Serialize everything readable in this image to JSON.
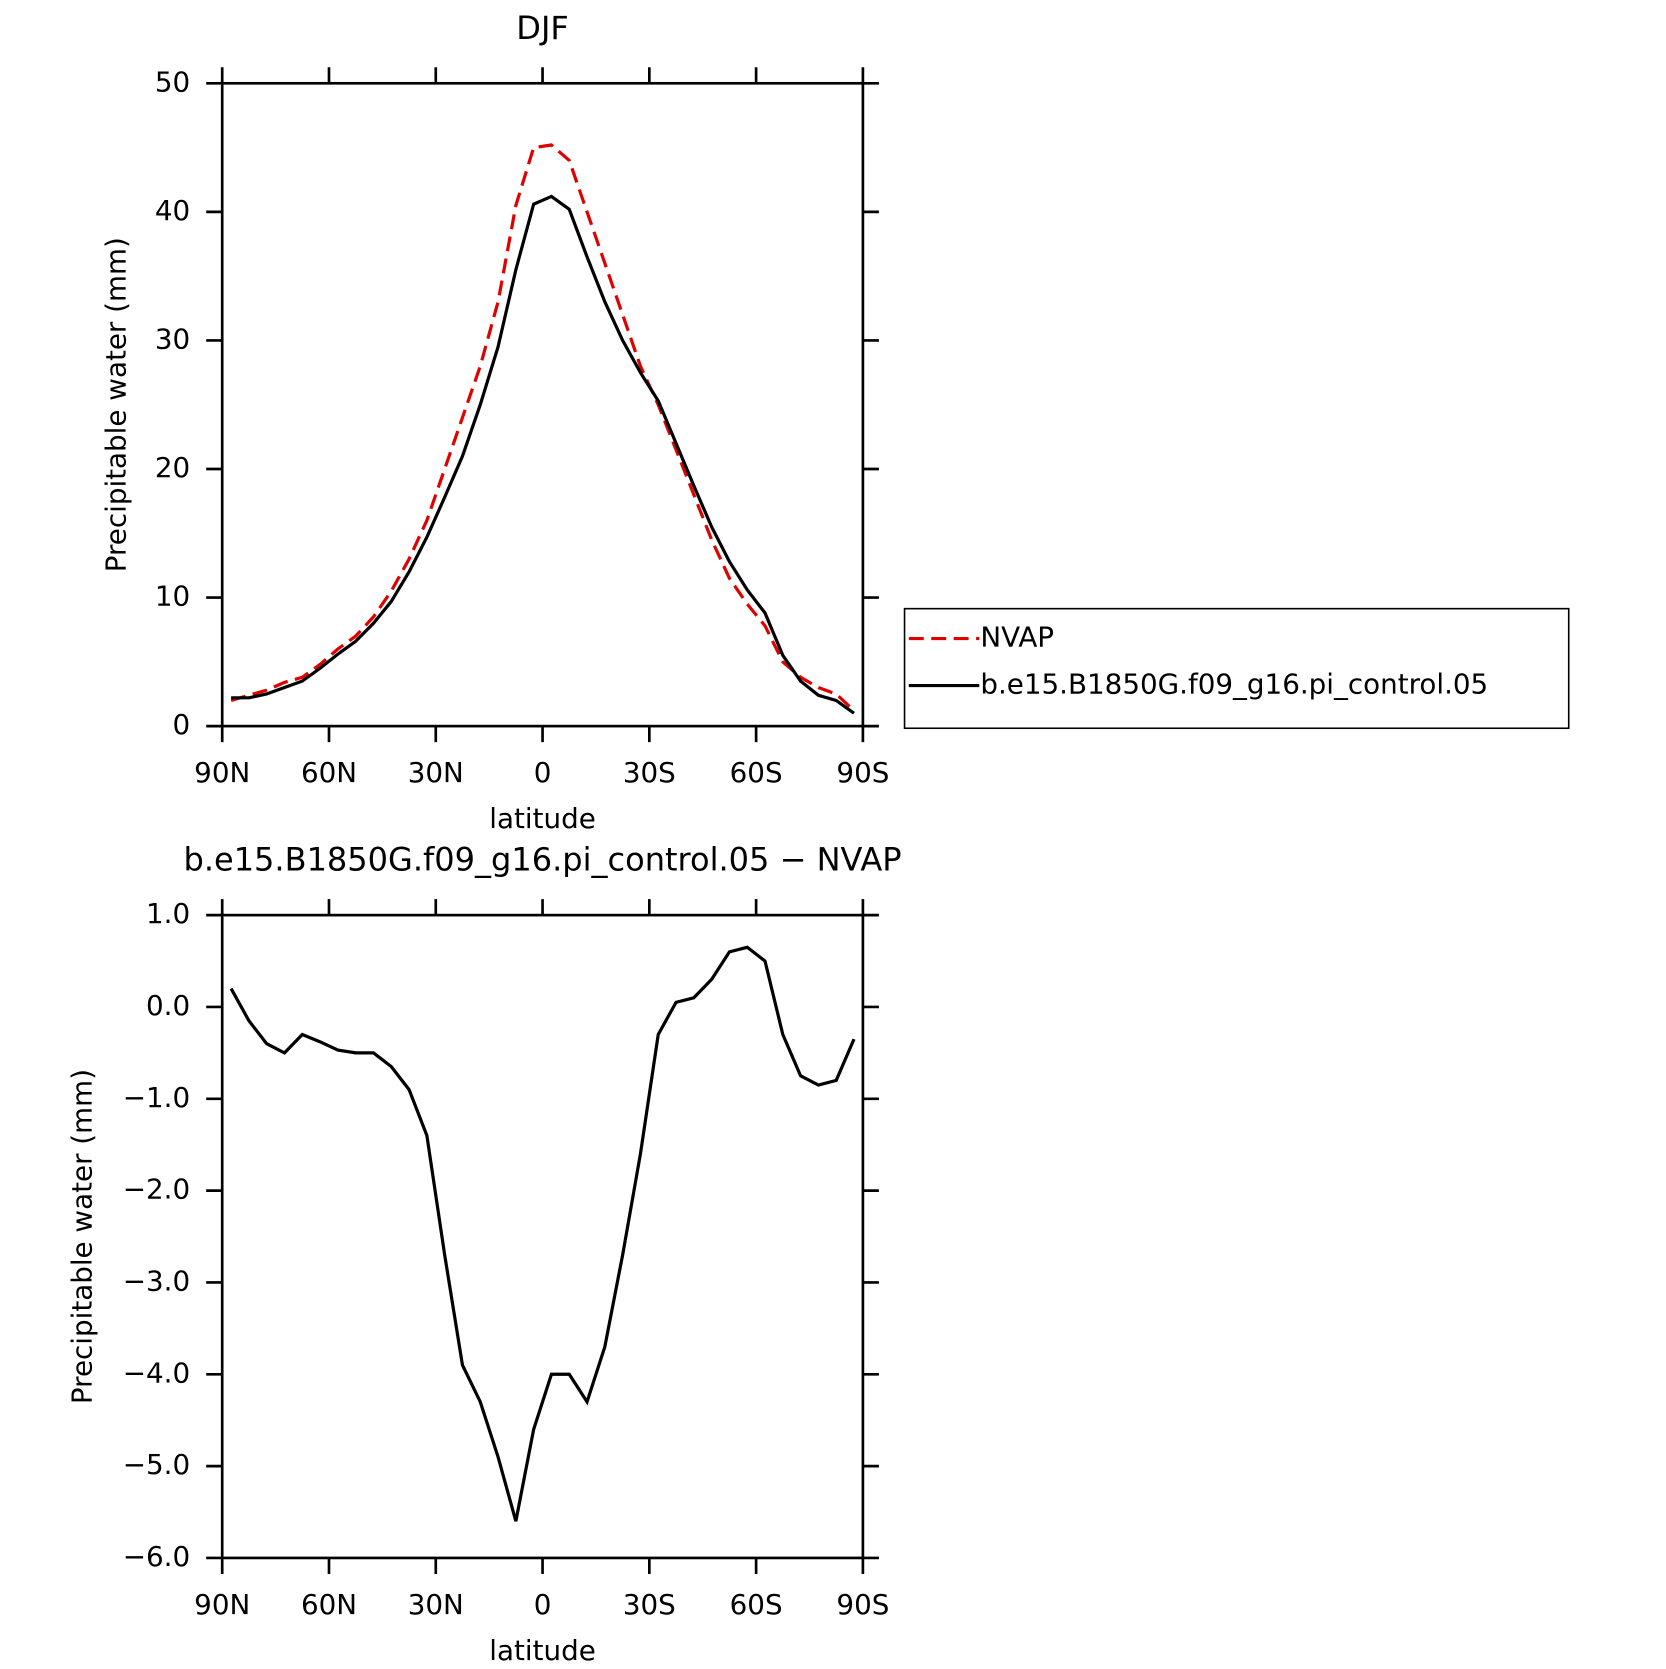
{
  "chart_data": [
    {
      "type": "line",
      "title": "DJF",
      "xlabel": "latitude",
      "ylabel": "Precipitable water (mm)",
      "x": [
        87.5,
        82.5,
        77.5,
        72.5,
        67.5,
        62.5,
        57.5,
        52.5,
        47.5,
        42.5,
        37.5,
        32.5,
        27.5,
        22.5,
        17.5,
        12.5,
        7.5,
        2.5,
        -2.5,
        -7.5,
        -12.5,
        -17.5,
        -22.5,
        -27.5,
        -32.5,
        -37.5,
        -42.5,
        -47.5,
        -52.5,
        -57.5,
        -62.5,
        -67.5,
        -72.5,
        -77.5,
        -82.5,
        -87.5
      ],
      "xlim": [
        90,
        -90
      ],
      "xticks": [
        {
          "value": 90,
          "label": "90N"
        },
        {
          "value": 60,
          "label": "60N"
        },
        {
          "value": 30,
          "label": "30N"
        },
        0,
        {
          "value": -30,
          "label": "30S"
        },
        {
          "value": -60,
          "label": "60S"
        },
        {
          "value": -90,
          "label": "90S"
        }
      ],
      "ylim": [
        0,
        50
      ],
      "yticks": [
        0,
        10,
        20,
        30,
        40,
        50
      ],
      "grid": false,
      "legend": "right",
      "series": [
        {
          "name": "NVAP",
          "color": "#e00000",
          "linestyle": "dashed",
          "values": [
            2.0,
            2.4,
            2.8,
            3.4,
            3.8,
            4.8,
            6.0,
            7.0,
            8.5,
            10.5,
            13.0,
            16.0,
            20.0,
            24.0,
            28.0,
            33.0,
            40.5,
            45.0,
            45.2,
            44.0,
            40.0,
            36.0,
            32.0,
            28.0,
            25.0,
            21.5,
            18.0,
            14.5,
            11.5,
            9.5,
            7.8,
            5.0,
            3.8,
            3.0,
            2.5,
            1.2
          ]
        },
        {
          "name": "b.e15.B1850G.f09_g16.pi_control.05",
          "color": "#000000",
          "linestyle": "solid",
          "values": [
            2.2,
            2.2,
            2.5,
            3.0,
            3.5,
            4.5,
            5.6,
            6.6,
            8.0,
            9.7,
            12.0,
            14.7,
            17.8,
            21.0,
            25.0,
            29.5,
            35.5,
            40.6,
            41.2,
            40.2,
            36.5,
            33.0,
            30.0,
            27.5,
            25.3,
            22.0,
            18.7,
            15.5,
            12.8,
            10.6,
            8.8,
            5.5,
            3.5,
            2.4,
            2.0,
            1.0
          ]
        }
      ]
    },
    {
      "type": "line",
      "title": "b.e15.B1850G.f09_g16.pi_control.05 − NVAP",
      "xlabel": "latitude",
      "ylabel": "Precipitable water (mm)",
      "x": [
        87.5,
        82.5,
        77.5,
        72.5,
        67.5,
        62.5,
        57.5,
        52.5,
        47.5,
        42.5,
        37.5,
        32.5,
        27.5,
        22.5,
        17.5,
        12.5,
        7.5,
        2.5,
        -2.5,
        -7.5,
        -12.5,
        -17.5,
        -22.5,
        -27.5,
        -32.5,
        -37.5,
        -42.5,
        -47.5,
        -52.5,
        -57.5,
        -62.5,
        -67.5,
        -72.5,
        -77.5,
        -82.5,
        -87.5
      ],
      "xlim": [
        90,
        -90
      ],
      "xticks": [
        {
          "value": 90,
          "label": "90N"
        },
        {
          "value": 60,
          "label": "60N"
        },
        {
          "value": 30,
          "label": "30N"
        },
        0,
        {
          "value": -30,
          "label": "30S"
        },
        {
          "value": -60,
          "label": "60S"
        },
        {
          "value": -90,
          "label": "90S"
        }
      ],
      "ylim": [
        -6,
        1
      ],
      "yticks": [
        {
          "value": -6,
          "label": "−6.0"
        },
        {
          "value": -5,
          "label": "−5.0"
        },
        {
          "value": -4,
          "label": "−4.0"
        },
        {
          "value": -3,
          "label": "−3.0"
        },
        {
          "value": -2,
          "label": "−2.0"
        },
        {
          "value": -1,
          "label": "−1.0"
        },
        {
          "value": 0,
          "label": "0.0"
        },
        {
          "value": 1,
          "label": "1.0"
        }
      ],
      "grid": false,
      "series": [
        {
          "color": "#000000",
          "linestyle": "solid",
          "values": [
            0.2,
            -0.15,
            -0.4,
            -0.5,
            -0.3,
            -0.38,
            -0.47,
            -0.5,
            -0.5,
            -0.65,
            -0.9,
            -1.4,
            -2.7,
            -3.9,
            -4.3,
            -4.9,
            -5.6,
            -4.6,
            -4.0,
            -4.0,
            -4.3,
            -3.7,
            -2.7,
            -1.6,
            -0.3,
            0.05,
            0.1,
            0.3,
            0.6,
            0.65,
            0.5,
            -0.3,
            -0.75,
            -0.85,
            -0.8,
            -0.35
          ]
        }
      ]
    }
  ]
}
